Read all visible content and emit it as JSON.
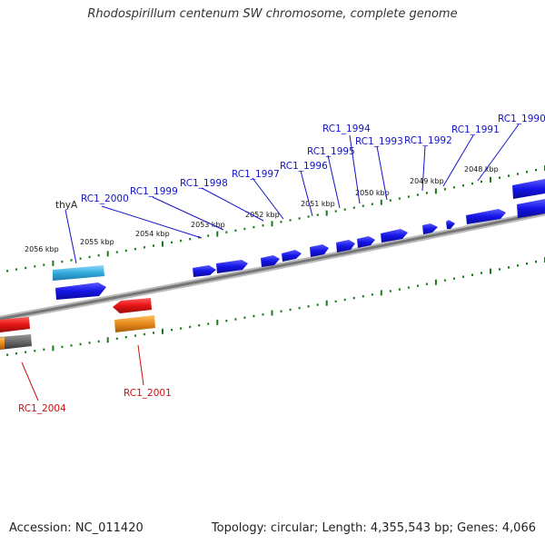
{
  "title": "Rhodospirillum centenum SW chromosome, complete genome",
  "accession": "Accession: NC_011420",
  "topology": "Topology: circular; Length: 4,355,543 bp; Genes: 4,066",
  "colors": {
    "backbone": "#888888",
    "forward_gene": "#1414e6",
    "reverse_gene": "#e61414",
    "thyA_gene": "#33aadd",
    "orange_gene": "#e6891a",
    "gray_gene": "#666666",
    "tick": "#1a7a1a",
    "forward_label": "#1414c8",
    "reverse_label": "#cc1111"
  },
  "kbp_labels": [
    "2056 kbp",
    "2055 kbp",
    "2054 kbp",
    "2053 kbp",
    "2052 kbp",
    "2051 kbp",
    "2050 kbp",
    "2049 kbp",
    "2048 kbp"
  ],
  "forward_labels": [
    "thyA",
    "RC1_2000",
    "RC1_1999",
    "RC1_1998",
    "RC1_1997",
    "RC1_1996",
    "RC1_1995",
    "RC1_1994",
    "RC1_1993",
    "RC1_1992",
    "RC1_1991",
    "RC1_1990"
  ],
  "reverse_labels": [
    "RC1_2001",
    "RC1_2004"
  ]
}
